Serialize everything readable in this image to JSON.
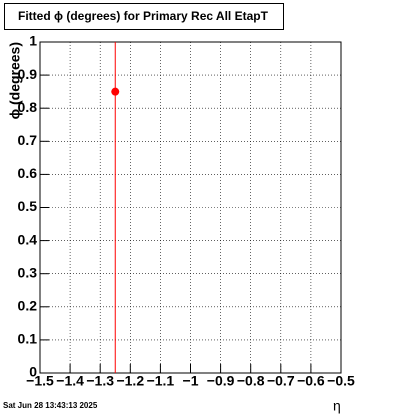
{
  "chart_data": {
    "type": "scatter",
    "title": "Fitted ϕ (degrees) for Primary Rec All EtapT",
    "x_label": "η",
    "y_label": "ϕ (degrees)",
    "footer": "Sat Jun 28 13:43:13 2025",
    "x": [
      -1.25
    ],
    "values": [
      0.85
    ],
    "errors": [
      1.0
    ],
    "color": "#ff0000",
    "xlim": [
      -1.5,
      -0.5
    ],
    "xticks": [
      {
        "value": -1.5,
        "label": "−1.5"
      },
      {
        "value": -1.4,
        "label": "−1.4"
      },
      {
        "value": -1.3,
        "label": "−1.3"
      },
      {
        "value": -1.2,
        "label": "−1.2"
      },
      {
        "value": -1.1,
        "label": "−1.1"
      },
      {
        "value": -1,
        "label": "−1"
      },
      {
        "value": -0.9,
        "label": "−0.9"
      },
      {
        "value": -0.8,
        "label": "−0.8"
      },
      {
        "value": -0.7,
        "label": "−0.7"
      },
      {
        "value": -0.6,
        "label": "−0.6"
      },
      {
        "value": -0.5,
        "label": "−0.5"
      }
    ],
    "ylim": [
      0,
      1
    ],
    "yticks": [
      0,
      0.1,
      0.2,
      0.3,
      0.4,
      0.5,
      0.6,
      0.7,
      0.8,
      0.9,
      1
    ],
    "grid": true
  }
}
